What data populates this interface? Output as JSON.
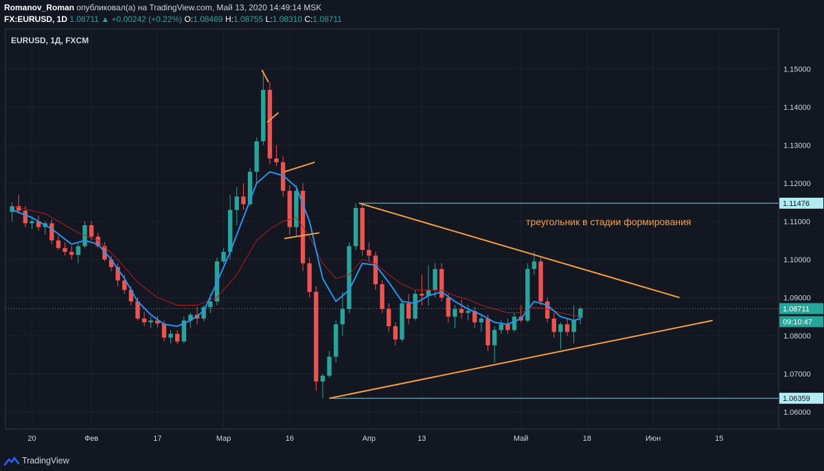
{
  "header": {
    "author": "Romanov_Roman",
    "published_text": "опубликовал(а) на TradingView.com, Май 13, 2020 14:49:14 MSK",
    "symbol_line": "FX:EURUSD, 1D",
    "last": "1.08711",
    "change_arrow": "▲",
    "change": "+0.00242 (+0.22%)",
    "o_label": "O:",
    "o_value": "1.08469",
    "h_label": "H:",
    "h_value": "1.08755",
    "l_label": "L:",
    "l_value": "1.08310",
    "c_label": "C:",
    "c_value": "1.08711"
  },
  "pane_label": "EURUSD, 1Д, FXCM",
  "annotation_text": "треугольник в стадии формирования",
  "price_badges": {
    "upper": "1.11476",
    "current": "1.08711",
    "countdown": "09:10:47",
    "lower": "1.06359"
  },
  "footer": {
    "brand": "TradingView"
  },
  "colors": {
    "background": "#131722",
    "up": "#26a69a",
    "down": "#ef5350",
    "ma_fast": "#2196f3",
    "ma_slow": "#b71c1c",
    "drawing": "#f7a03c",
    "level_line": "#7fd2e8",
    "text": "#d1d4dc"
  },
  "chart_data": {
    "type": "candlestick",
    "y_ticks": [
      "1.15000",
      "1.14000",
      "1.13000",
      "1.12000",
      "1.11000",
      "1.10000",
      "1.09000",
      "1.08000",
      "1.07000",
      "1.06000"
    ],
    "ylim": [
      1.0555,
      1.1605
    ],
    "x_ticks": [
      {
        "label": "20",
        "x": 8
      },
      {
        "label": "Фев",
        "x": 17
      },
      {
        "label": "17",
        "x": 27
      },
      {
        "label": "Мар",
        "x": 37
      },
      {
        "label": "16",
        "x": 47
      },
      {
        "label": "Апр",
        "x": 59
      },
      {
        "label": "13",
        "x": 67
      },
      {
        "label": "Май",
        "x": 82
      },
      {
        "label": "18",
        "x": 92
      },
      {
        "label": "Июн",
        "x": 102
      },
      {
        "label": "15",
        "x": 112
      }
    ],
    "xlim": [
      4,
      121
    ],
    "candles": [
      {
        "x": 5,
        "o": 1.1125,
        "h": 1.115,
        "l": 1.11,
        "c": 1.114
      },
      {
        "x": 6,
        "o": 1.114,
        "h": 1.117,
        "l": 1.112,
        "c": 1.1128
      },
      {
        "x": 7,
        "o": 1.1128,
        "h": 1.114,
        "l": 1.1085,
        "c": 1.1095
      },
      {
        "x": 8,
        "o": 1.1095,
        "h": 1.111,
        "l": 1.108,
        "c": 1.11
      },
      {
        "x": 9,
        "o": 1.11,
        "h": 1.1115,
        "l": 1.1075,
        "c": 1.1085
      },
      {
        "x": 10,
        "o": 1.1085,
        "h": 1.11,
        "l": 1.1065,
        "c": 1.1095
      },
      {
        "x": 11,
        "o": 1.1095,
        "h": 1.1105,
        "l": 1.104,
        "c": 1.105
      },
      {
        "x": 12,
        "o": 1.105,
        "h": 1.1062,
        "l": 1.1025,
        "c": 1.103
      },
      {
        "x": 13,
        "o": 1.103,
        "h": 1.1045,
        "l": 1.101,
        "c": 1.102
      },
      {
        "x": 14,
        "o": 1.102,
        "h": 1.1035,
        "l": 1.1,
        "c": 1.1012
      },
      {
        "x": 15,
        "o": 1.1012,
        "h": 1.1045,
        "l": 1.099,
        "c": 1.1035
      },
      {
        "x": 16,
        "o": 1.1035,
        "h": 1.11,
        "l": 1.103,
        "c": 1.109
      },
      {
        "x": 17,
        "o": 1.109,
        "h": 1.11,
        "l": 1.105,
        "c": 1.106
      },
      {
        "x": 18,
        "o": 1.106,
        "h": 1.107,
        "l": 1.103,
        "c": 1.1035
      },
      {
        "x": 19,
        "o": 1.1035,
        "h": 1.1045,
        "l": 1.0995,
        "c": 1.1
      },
      {
        "x": 20,
        "o": 1.1,
        "h": 1.101,
        "l": 1.097,
        "c": 1.098
      },
      {
        "x": 21,
        "o": 1.098,
        "h": 1.099,
        "l": 1.093,
        "c": 1.0945
      },
      {
        "x": 22,
        "o": 1.0945,
        "h": 1.096,
        "l": 1.091,
        "c": 1.092
      },
      {
        "x": 23,
        "o": 1.092,
        "h": 1.093,
        "l": 1.088,
        "c": 1.089
      },
      {
        "x": 24,
        "o": 1.089,
        "h": 1.09,
        "l": 1.084,
        "c": 1.0845
      },
      {
        "x": 25,
        "o": 1.0845,
        "h": 1.0862,
        "l": 1.0825,
        "c": 1.0835
      },
      {
        "x": 26,
        "o": 1.0835,
        "h": 1.085,
        "l": 1.082,
        "c": 1.084
      },
      {
        "x": 27,
        "o": 1.084,
        "h": 1.0852,
        "l": 1.0822,
        "c": 1.0832
      },
      {
        "x": 28,
        "o": 1.0832,
        "h": 1.084,
        "l": 1.0785,
        "c": 1.0795
      },
      {
        "x": 29,
        "o": 1.0795,
        "h": 1.0815,
        "l": 1.078,
        "c": 1.0805
      },
      {
        "x": 30,
        "o": 1.0805,
        "h": 1.0815,
        "l": 1.0778,
        "c": 1.0785
      },
      {
        "x": 31,
        "o": 1.0785,
        "h": 1.085,
        "l": 1.078,
        "c": 1.084
      },
      {
        "x": 32,
        "o": 1.084,
        "h": 1.086,
        "l": 1.082,
        "c": 1.0855
      },
      {
        "x": 33,
        "o": 1.0855,
        "h": 1.0875,
        "l": 1.083,
        "c": 1.0845
      },
      {
        "x": 34,
        "o": 1.0845,
        "h": 1.088,
        "l": 1.0838,
        "c": 1.0875
      },
      {
        "x": 35,
        "o": 1.0875,
        "h": 1.091,
        "l": 1.086,
        "c": 1.089
      },
      {
        "x": 36,
        "o": 1.089,
        "h": 1.1005,
        "l": 1.088,
        "c": 1.0995
      },
      {
        "x": 37,
        "o": 1.0995,
        "h": 1.103,
        "l": 1.099,
        "c": 1.102
      },
      {
        "x": 38,
        "o": 1.102,
        "h": 1.117,
        "l": 1.1,
        "c": 1.113
      },
      {
        "x": 39,
        "o": 1.113,
        "h": 1.119,
        "l": 1.109,
        "c": 1.1165
      },
      {
        "x": 40,
        "o": 1.1165,
        "h": 1.12,
        "l": 1.113,
        "c": 1.1145
      },
      {
        "x": 41,
        "o": 1.1145,
        "h": 1.124,
        "l": 1.114,
        "c": 1.123
      },
      {
        "x": 42,
        "o": 1.123,
        "h": 1.132,
        "l": 1.12,
        "c": 1.131
      },
      {
        "x": 43,
        "o": 1.131,
        "h": 1.1495,
        "l": 1.13,
        "c": 1.1445
      },
      {
        "x": 44,
        "o": 1.1445,
        "h": 1.1465,
        "l": 1.125,
        "c": 1.1265
      },
      {
        "x": 45,
        "o": 1.1265,
        "h": 1.13,
        "l": 1.1245,
        "c": 1.1255
      },
      {
        "x": 46,
        "o": 1.1255,
        "h": 1.127,
        "l": 1.1165,
        "c": 1.118
      },
      {
        "x": 47,
        "o": 1.118,
        "h": 1.1195,
        "l": 1.1065,
        "c": 1.1085
      },
      {
        "x": 48,
        "o": 1.1085,
        "h": 1.1195,
        "l": 1.106,
        "c": 1.118
      },
      {
        "x": 49,
        "o": 1.118,
        "h": 1.12,
        "l": 1.097,
        "c": 1.099
      },
      {
        "x": 50,
        "o": 1.099,
        "h": 1.1005,
        "l": 1.09,
        "c": 1.0915
      },
      {
        "x": 51,
        "o": 1.0915,
        "h": 1.093,
        "l": 1.0655,
        "c": 1.068
      },
      {
        "x": 52,
        "o": 1.068,
        "h": 1.07,
        "l": 1.0635,
        "c": 1.0695
      },
      {
        "x": 53,
        "o": 1.0695,
        "h": 1.076,
        "l": 1.069,
        "c": 1.0745
      },
      {
        "x": 54,
        "o": 1.0745,
        "h": 1.084,
        "l": 1.073,
        "c": 1.083
      },
      {
        "x": 55,
        "o": 1.083,
        "h": 1.0915,
        "l": 1.08,
        "c": 1.087
      },
      {
        "x": 56,
        "o": 1.087,
        "h": 1.1045,
        "l": 1.086,
        "c": 1.1035
      },
      {
        "x": 57,
        "o": 1.1035,
        "h": 1.1148,
        "l": 1.1025,
        "c": 1.1135
      },
      {
        "x": 58,
        "o": 1.1135,
        "h": 1.1145,
        "l": 1.101,
        "c": 1.1025
      },
      {
        "x": 59,
        "o": 1.1025,
        "h": 1.1045,
        "l": 1.0995,
        "c": 1.101
      },
      {
        "x": 60,
        "o": 1.101,
        "h": 1.102,
        "l": 1.092,
        "c": 1.0935
      },
      {
        "x": 61,
        "o": 1.0935,
        "h": 1.0945,
        "l": 1.086,
        "c": 1.087
      },
      {
        "x": 62,
        "o": 1.087,
        "h": 1.0885,
        "l": 1.081,
        "c": 1.0825
      },
      {
        "x": 63,
        "o": 1.0825,
        "h": 1.0835,
        "l": 1.0775,
        "c": 1.079
      },
      {
        "x": 64,
        "o": 1.079,
        "h": 1.0895,
        "l": 1.0785,
        "c": 1.0885
      },
      {
        "x": 65,
        "o": 1.0885,
        "h": 1.091,
        "l": 1.083,
        "c": 1.0845
      },
      {
        "x": 66,
        "o": 1.0845,
        "h": 1.092,
        "l": 1.084,
        "c": 1.091
      },
      {
        "x": 67,
        "o": 1.091,
        "h": 1.096,
        "l": 1.088,
        "c": 1.0905
      },
      {
        "x": 68,
        "o": 1.0905,
        "h": 1.0985,
        "l": 1.088,
        "c": 1.092
      },
      {
        "x": 69,
        "o": 1.092,
        "h": 1.099,
        "l": 1.09,
        "c": 1.0975
      },
      {
        "x": 70,
        "o": 1.0975,
        "h": 1.099,
        "l": 1.089,
        "c": 1.09
      },
      {
        "x": 71,
        "o": 1.09,
        "h": 1.091,
        "l": 1.0835,
        "c": 1.085
      },
      {
        "x": 72,
        "o": 1.085,
        "h": 1.088,
        "l": 1.082,
        "c": 1.087
      },
      {
        "x": 73,
        "o": 1.087,
        "h": 1.0895,
        "l": 1.0845,
        "c": 1.086
      },
      {
        "x": 74,
        "o": 1.086,
        "h": 1.088,
        "l": 1.084,
        "c": 1.0865
      },
      {
        "x": 75,
        "o": 1.0865,
        "h": 1.0875,
        "l": 1.082,
        "c": 1.0835
      },
      {
        "x": 76,
        "o": 1.0835,
        "h": 1.0855,
        "l": 1.081,
        "c": 1.0845
      },
      {
        "x": 77,
        "o": 1.0845,
        "h": 1.0855,
        "l": 1.076,
        "c": 1.0775
      },
      {
        "x": 78,
        "o": 1.0775,
        "h": 1.0825,
        "l": 1.073,
        "c": 1.0815
      },
      {
        "x": 79,
        "o": 1.0815,
        "h": 1.084,
        "l": 1.0805,
        "c": 1.083
      },
      {
        "x": 80,
        "o": 1.083,
        "h": 1.0845,
        "l": 1.0805,
        "c": 1.0815
      },
      {
        "x": 81,
        "o": 1.0815,
        "h": 1.086,
        "l": 1.081,
        "c": 1.085
      },
      {
        "x": 82,
        "o": 1.085,
        "h": 1.088,
        "l": 1.0835,
        "c": 1.084
      },
      {
        "x": 83,
        "o": 1.084,
        "h": 1.099,
        "l": 1.0835,
        "c": 1.0975
      },
      {
        "x": 84,
        "o": 1.0975,
        "h": 1.102,
        "l": 1.096,
        "c": 1.0995
      },
      {
        "x": 85,
        "o": 1.0995,
        "h": 1.1005,
        "l": 1.088,
        "c": 1.089
      },
      {
        "x": 86,
        "o": 1.089,
        "h": 1.09,
        "l": 1.0835,
        "c": 1.0845
      },
      {
        "x": 87,
        "o": 1.0845,
        "h": 1.086,
        "l": 1.0795,
        "c": 1.081
      },
      {
        "x": 88,
        "o": 1.081,
        "h": 1.0835,
        "l": 1.0765,
        "c": 1.083
      },
      {
        "x": 89,
        "o": 1.083,
        "h": 1.0845,
        "l": 1.08,
        "c": 1.081
      },
      {
        "x": 90,
        "o": 1.081,
        "h": 1.088,
        "l": 1.078,
        "c": 1.084
      },
      {
        "x": 91,
        "o": 1.0847,
        "h": 1.0876,
        "l": 1.0831,
        "c": 1.0871
      }
    ],
    "ma_fast": [
      [
        5,
        1.113
      ],
      [
        8,
        1.111
      ],
      [
        11,
        1.108
      ],
      [
        14,
        1.104
      ],
      [
        16,
        1.105
      ],
      [
        18,
        1.104
      ],
      [
        20,
        1.1
      ],
      [
        22,
        1.095
      ],
      [
        24,
        1.089
      ],
      [
        26,
        1.0855
      ],
      [
        28,
        1.083
      ],
      [
        30,
        1.0825
      ],
      [
        32,
        1.084
      ],
      [
        34,
        1.0865
      ],
      [
        36,
        1.094
      ],
      [
        38,
        1.102
      ],
      [
        40,
        1.111
      ],
      [
        42,
        1.12
      ],
      [
        44,
        1.123
      ],
      [
        46,
        1.122
      ],
      [
        48,
        1.119
      ],
      [
        50,
        1.11
      ],
      [
        52,
        1.095
      ],
      [
        54,
        1.089
      ],
      [
        56,
        1.092
      ],
      [
        58,
        1.099
      ],
      [
        60,
        1.0985
      ],
      [
        62,
        1.094
      ],
      [
        64,
        1.089
      ],
      [
        66,
        1.0885
      ],
      [
        68,
        1.0905
      ],
      [
        70,
        1.0915
      ],
      [
        72,
        1.089
      ],
      [
        74,
        1.087
      ],
      [
        76,
        1.0855
      ],
      [
        78,
        1.0835
      ],
      [
        80,
        1.083
      ],
      [
        82,
        1.0845
      ],
      [
        84,
        1.089
      ],
      [
        86,
        1.088
      ],
      [
        88,
        1.085
      ],
      [
        90,
        1.084
      ],
      [
        91,
        1.0845
      ]
    ],
    "ma_slow": [
      [
        5,
        1.114
      ],
      [
        10,
        1.112
      ],
      [
        15,
        1.107
      ],
      [
        18,
        1.105
      ],
      [
        21,
        1.1
      ],
      [
        24,
        1.094
      ],
      [
        27,
        1.09
      ],
      [
        30,
        1.088
      ],
      [
        33,
        1.088
      ],
      [
        36,
        1.09
      ],
      [
        39,
        1.096
      ],
      [
        42,
        1.105
      ],
      [
        44,
        1.108
      ],
      [
        46,
        1.11
      ],
      [
        48,
        1.111
      ],
      [
        50,
        1.106
      ],
      [
        52,
        1.099
      ],
      [
        54,
        1.095
      ],
      [
        56,
        1.096
      ],
      [
        58,
        1.1
      ],
      [
        60,
        1.099
      ],
      [
        62,
        1.096
      ],
      [
        64,
        1.0935
      ],
      [
        66,
        1.092
      ],
      [
        68,
        1.092
      ],
      [
        70,
        1.092
      ],
      [
        72,
        1.0905
      ],
      [
        74,
        1.0895
      ],
      [
        76,
        1.088
      ],
      [
        78,
        1.087
      ],
      [
        80,
        1.086
      ],
      [
        82,
        1.086
      ],
      [
        84,
        1.0875
      ],
      [
        86,
        1.087
      ],
      [
        88,
        1.086
      ],
      [
        91,
        1.085
      ]
    ],
    "levels": {
      "upper": 1.11476,
      "lower": 1.06359,
      "current": 1.08711
    },
    "triangle": {
      "upper_line": [
        [
          57.5,
          1.11476
        ],
        [
          106,
          1.09
        ]
      ],
      "lower_line": [
        [
          53,
          1.06359
        ],
        [
          111,
          1.084
        ]
      ]
    },
    "markups": [
      [
        [
          42.8,
          1.1497
        ],
        [
          43.8,
          1.1465
        ]
      ],
      [
        [
          43.6,
          1.136
        ],
        [
          45.3,
          1.1385
        ]
      ],
      [
        [
          46.2,
          1.123
        ],
        [
          50.8,
          1.1255
        ]
      ],
      [
        [
          46.2,
          1.1055
        ],
        [
          51.5,
          1.107
        ]
      ]
    ]
  }
}
